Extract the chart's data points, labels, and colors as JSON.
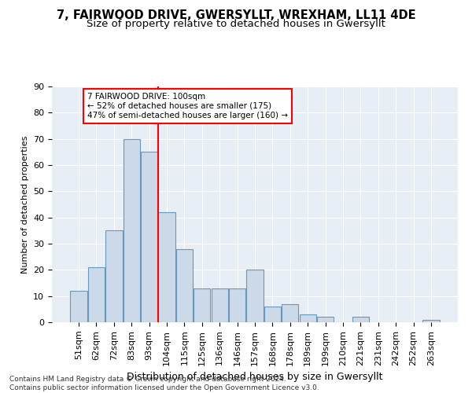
{
  "title1": "7, FAIRWOOD DRIVE, GWERSYLLT, WREXHAM, LL11 4DE",
  "title2": "Size of property relative to detached houses in Gwersyllt",
  "xlabel": "Distribution of detached houses by size in Gwersyllt",
  "ylabel": "Number of detached properties",
  "bar_labels": [
    "51sqm",
    "62sqm",
    "72sqm",
    "83sqm",
    "93sqm",
    "104sqm",
    "115sqm",
    "125sqm",
    "136sqm",
    "146sqm",
    "157sqm",
    "168sqm",
    "178sqm",
    "189sqm",
    "199sqm",
    "210sqm",
    "221sqm",
    "231sqm",
    "242sqm",
    "252sqm",
    "263sqm"
  ],
  "bar_values": [
    12,
    21,
    35,
    70,
    65,
    42,
    28,
    13,
    13,
    13,
    20,
    6,
    7,
    3,
    2,
    0,
    2,
    0,
    0,
    0,
    1
  ],
  "bar_color": "#ccd9e8",
  "bar_edge_color": "#6699bb",
  "vline_x": 4.5,
  "vline_color": "red",
  "annotation_text": "7 FAIRWOOD DRIVE: 100sqm\n← 52% of detached houses are smaller (175)\n47% of semi-detached houses are larger (160) →",
  "annotation_box_color": "white",
  "annotation_box_edge": "red",
  "ylim": [
    0,
    90
  ],
  "yticks": [
    0,
    10,
    20,
    30,
    40,
    50,
    60,
    70,
    80,
    90
  ],
  "footer": "Contains HM Land Registry data © Crown copyright and database right 2024.\nContains public sector information licensed under the Open Government Licence v3.0.",
  "plot_bg_color": "#e8eef5",
  "title1_fontsize": 10.5,
  "title2_fontsize": 9.5,
  "xlabel_fontsize": 9,
  "ylabel_fontsize": 8,
  "tick_fontsize": 8,
  "footer_fontsize": 6.5
}
